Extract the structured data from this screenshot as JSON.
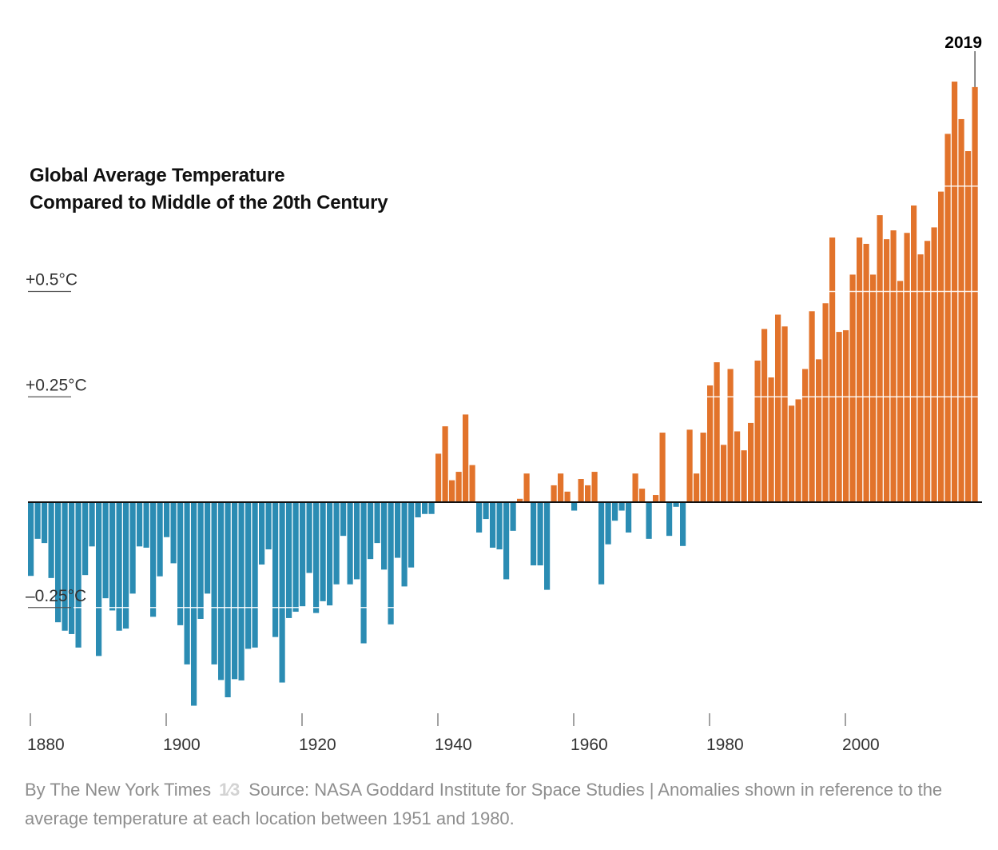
{
  "chart_data": {
    "type": "bar",
    "title": "Global Average Temperature",
    "subtitle": "Compared to Middle of the 20th Century",
    "xlabel": "",
    "ylabel": "",
    "x_start": 1880,
    "x_end": 2019,
    "ylim": [
      -0.5,
      1.0
    ],
    "grid": true,
    "y_ticks": [
      {
        "value": 0.5,
        "label": "+0.5°C"
      },
      {
        "value": 0.25,
        "label": "+0.25°C"
      },
      {
        "value": -0.25,
        "label": "–0.25°C"
      }
    ],
    "x_ticks": [
      {
        "value": 1880,
        "label": "1880"
      },
      {
        "value": 1900,
        "label": "1900"
      },
      {
        "value": 1920,
        "label": "1920"
      },
      {
        "value": 1940,
        "label": "1940"
      },
      {
        "value": 1960,
        "label": "1960"
      },
      {
        "value": 1980,
        "label": "1980"
      },
      {
        "value": 2000,
        "label": "2000"
      }
    ],
    "annotation": {
      "year": 2019,
      "label": "2019"
    },
    "colors": {
      "positive": "#E2732B",
      "negative": "#2B8CB3",
      "zero_line": "#111111"
    },
    "values": [
      -0.175,
      -0.087,
      -0.097,
      -0.18,
      -0.285,
      -0.305,
      -0.313,
      -0.345,
      -0.173,
      -0.105,
      -0.365,
      -0.228,
      -0.257,
      -0.305,
      -0.3,
      -0.217,
      -0.105,
      -0.108,
      -0.272,
      -0.176,
      -0.083,
      -0.145,
      -0.292,
      -0.385,
      -0.483,
      -0.277,
      -0.217,
      -0.385,
      -0.422,
      -0.463,
      -0.42,
      -0.423,
      -0.348,
      -0.345,
      -0.148,
      -0.112,
      -0.32,
      -0.428,
      -0.275,
      -0.26,
      -0.247,
      -0.168,
      -0.263,
      -0.235,
      -0.245,
      -0.195,
      -0.08,
      -0.195,
      -0.183,
      -0.335,
      -0.135,
      -0.097,
      -0.16,
      -0.29,
      -0.132,
      -0.2,
      -0.155,
      -0.036,
      -0.028,
      -0.028,
      0.115,
      0.18,
      0.052,
      0.072,
      0.208,
      0.088,
      -0.072,
      -0.04,
      -0.108,
      -0.112,
      -0.183,
      -0.068,
      0.008,
      0.068,
      -0.15,
      -0.15,
      -0.208,
      0.04,
      0.068,
      0.025,
      -0.02,
      0.055,
      0.04,
      0.072,
      -0.195,
      -0.1,
      -0.044,
      -0.02,
      -0.072,
      0.068,
      0.032,
      -0.087,
      0.017,
      0.165,
      -0.08,
      -0.011,
      -0.104,
      0.172,
      0.068,
      0.165,
      0.277,
      0.332,
      0.136,
      0.316,
      0.168,
      0.123,
      0.188,
      0.336,
      0.411,
      0.296,
      0.445,
      0.417,
      0.229,
      0.244,
      0.316,
      0.453,
      0.339,
      0.472,
      0.628,
      0.404,
      0.408,
      0.54,
      0.628,
      0.613,
      0.54,
      0.681,
      0.624,
      0.645,
      0.525,
      0.639,
      0.704,
      0.588,
      0.62,
      0.652,
      0.737,
      0.874,
      0.998,
      0.909,
      0.833,
      0.985
    ]
  },
  "footer": {
    "byline": "By The New York Times",
    "fraction": "1⁄3",
    "source": "Source: NASA Goddard Institute for Space Studies | Anomalies shown in reference to the average temperature at each location between 1951 and 1980."
  }
}
